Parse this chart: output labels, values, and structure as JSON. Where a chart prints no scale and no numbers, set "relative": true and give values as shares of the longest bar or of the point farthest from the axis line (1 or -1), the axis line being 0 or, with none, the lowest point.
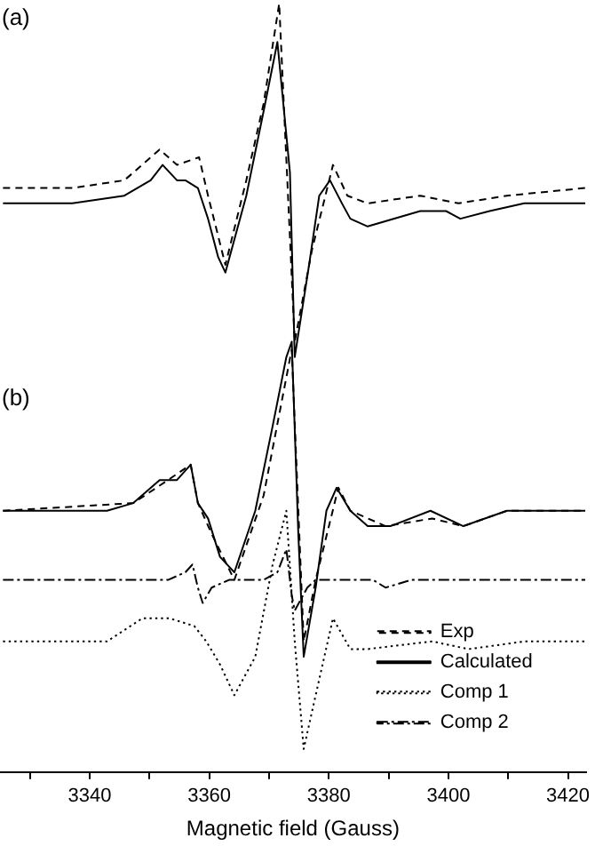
{
  "chart_data": {
    "type": "line",
    "xlabel": "Magnetic field (Gauss)",
    "relative": true,
    "xlim": [
      3325,
      3423
    ],
    "tick_labels": "x",
    "legend": "right",
    "annotations": [
      "(a)",
      "(b)"
    ],
    "xticks": [
      {
        "value": 3330,
        "label": null
      },
      3340,
      {
        "value": 3350,
        "label": null
      },
      3360,
      {
        "value": 3370,
        "label": null
      },
      3380,
      {
        "value": 3390,
        "label": null
      },
      3400,
      {
        "value": 3410,
        "label": null
      },
      3420
    ],
    "series": [
      {
        "color": "#000000",
        "line_style": "dashed",
        "x": [
          3325.5,
          3337.1,
          3345.8,
          3351.7,
          3354.6,
          3358.3,
          3359.8,
          3362.7,
          3366.2,
          3369.1,
          3371.7,
          3374.3,
          3377.2,
          3380.7,
          3383.1,
          3386.5,
          3395.3,
          3401.7,
          3409.8,
          3422.9
        ],
        "values": [
          0.76,
          0.76,
          0.77,
          0.81,
          0.79,
          0.8,
          0.75,
          0.66,
          0.77,
          0.87,
          1,
          0.56,
          0.68,
          0.79,
          0.75,
          0.74,
          0.75,
          0.74,
          0.75,
          0.76
        ]
      },
      {
        "color": "#000000",
        "line_style": "solid",
        "x": [
          3325.5,
          3337.1,
          3345.8,
          3350.2,
          3352.2,
          3354.6,
          3356.0,
          3358.1,
          3359.8,
          3361.5,
          3362.7,
          3366.2,
          3369.1,
          3371.4,
          3373.5,
          3374.3,
          3376.7,
          3378.4,
          3380.2,
          3382.2,
          3383.6,
          3386.5,
          3395.3,
          3399.6,
          3402.0,
          3406.9,
          3412.7,
          3422.9
        ],
        "values": [
          0.74,
          0.74,
          0.75,
          0.77,
          0.79,
          0.77,
          0.77,
          0.76,
          0.72,
          0.67,
          0.65,
          0.75,
          0.86,
          0.95,
          0.78,
          0.54,
          0.66,
          0.75,
          0.77,
          0.74,
          0.72,
          0.71,
          0.73,
          0.73,
          0.72,
          0.73,
          0.74,
          0.74
        ]
      },
      {
        "name": "Exp",
        "color": "#000000",
        "line_style": "dashed",
        "x": [
          3325.5,
          3347.3,
          3353.1,
          3356.9,
          3358.1,
          3360.4,
          3364.2,
          3369.1,
          3373.8,
          3375.8,
          3377.8,
          3381.6,
          3383.6,
          3389.5,
          3397.3,
          3402.5,
          3409.8,
          3422.9
        ],
        "values": [
          0.34,
          0.35,
          0.38,
          0.4,
          0.35,
          0.31,
          0.25,
          0.36,
          0.55,
          0.17,
          0.25,
          0.37,
          0.34,
          0.32,
          0.33,
          0.32,
          0.34,
          0.34
        ]
      },
      {
        "name": "Calculated",
        "color": "#000000",
        "line_style": "solid",
        "x": [
          3325.5,
          3342.9,
          3347.3,
          3351.7,
          3354.6,
          3356.9,
          3358.1,
          3359.8,
          3361.8,
          3364.2,
          3367.7,
          3370.6,
          3372.9,
          3373.8,
          3374.9,
          3375.8,
          3377.8,
          3379.6,
          3381.3,
          3383.6,
          3386.5,
          3390.3,
          3397.0,
          3402.5,
          3409.8,
          3422.9
        ],
        "values": [
          0.34,
          0.34,
          0.35,
          0.38,
          0.38,
          0.4,
          0.35,
          0.33,
          0.28,
          0.26,
          0.34,
          0.45,
          0.54,
          0.56,
          0.31,
          0.15,
          0.24,
          0.34,
          0.37,
          0.34,
          0.32,
          0.32,
          0.34,
          0.32,
          0.34,
          0.34
        ]
      },
      {
        "name": "Comp 1",
        "color": "#000000",
        "line_style": "dotted",
        "x": [
          3325.5,
          3342.9,
          3348.8,
          3353.4,
          3357.5,
          3359.5,
          3361.8,
          3364.2,
          3367.7,
          3370.6,
          3372.9,
          3374.3,
          3375.8,
          3377.8,
          3380.7,
          3383.6,
          3386.5,
          3397.3,
          3403.4,
          3412.7,
          3422.9
        ],
        "values": [
          0.17,
          0.17,
          0.2,
          0.2,
          0.19,
          0.17,
          0.14,
          0.1,
          0.15,
          0.27,
          0.34,
          0.17,
          0.03,
          0.1,
          0.2,
          0.16,
          0.16,
          0.17,
          0.16,
          0.17,
          0.17
        ]
      },
      {
        "name": "Comp 2",
        "color": "#000000",
        "line_style": "dashdot",
        "x": [
          3325.5,
          3353.1,
          3356.0,
          3357.2,
          3358.1,
          3358.9,
          3360.4,
          3363.3,
          3369.1,
          3371.4,
          3372.9,
          3373.8,
          3374.3,
          3376.4,
          3377.8,
          3385.1,
          3387.4,
          3389.5,
          3393.8,
          3422.9
        ],
        "values": [
          0.25,
          0.25,
          0.26,
          0.27,
          0.24,
          0.22,
          0.24,
          0.25,
          0.25,
          0.26,
          0.29,
          0.23,
          0.21,
          0.24,
          0.25,
          0.25,
          0.25,
          0.24,
          0.25,
          0.25
        ]
      }
    ]
  }
}
